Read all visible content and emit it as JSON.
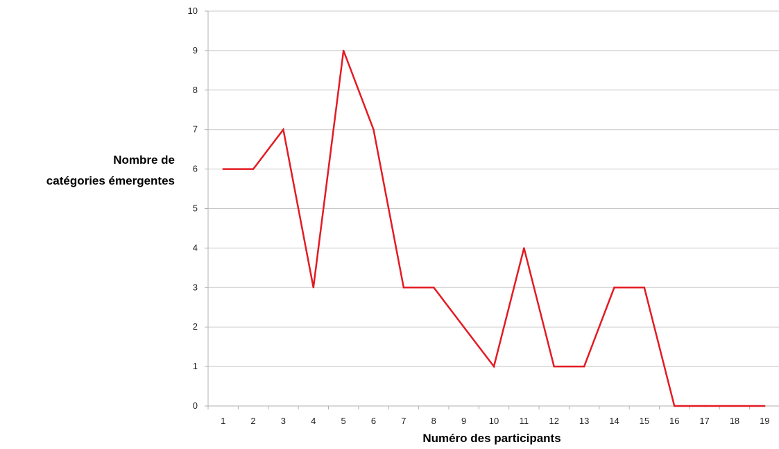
{
  "chart_data": {
    "type": "line",
    "title": "",
    "ylabel_lines": [
      "Nombre de",
      "catégories émergentes"
    ],
    "xlabel": "Numéro des participants",
    "x": [
      1,
      2,
      3,
      4,
      5,
      6,
      7,
      8,
      9,
      10,
      11,
      12,
      13,
      14,
      15,
      16,
      17,
      18,
      19
    ],
    "series": [
      {
        "values": [
          6,
          6,
          7,
          3,
          9,
          7,
          3,
          3,
          2,
          1,
          4,
          1,
          1,
          3,
          3,
          0,
          0,
          0,
          0
        ],
        "color": "#e31b23"
      }
    ],
    "ylim": [
      0,
      10
    ],
    "yticks": [
      "0",
      "1",
      "2",
      "3",
      "4",
      "5",
      "6",
      "7",
      "8",
      "9",
      "10"
    ],
    "xticks": [
      "1",
      "2",
      "3",
      "4",
      "5",
      "6",
      "7",
      "8",
      "9",
      "10",
      "11",
      "12",
      "13",
      "14",
      "15",
      "16",
      "17",
      "18",
      "19"
    ],
    "grid": "horizontal",
    "legend": "none",
    "gridline_color": "#c8c8c8",
    "axis_color": "#b0b0b0"
  }
}
